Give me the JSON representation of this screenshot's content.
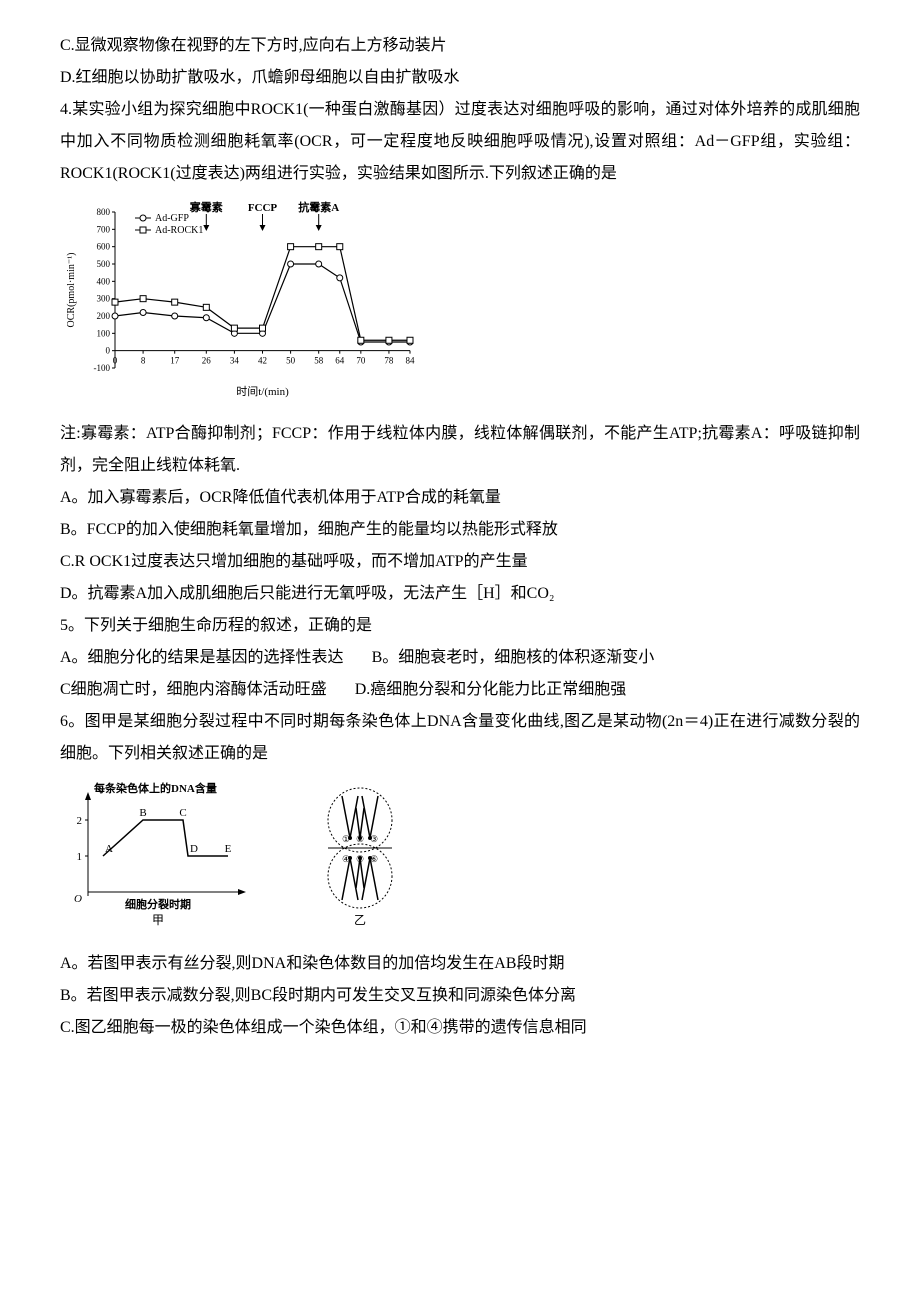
{
  "lines": {
    "l1": "C.显微观察物像在视野的左下方时,应向右上方移动装片",
    "l2": "D.红细胞以协助扩散吸水，爪蟾卵母细胞以自由扩散吸水",
    "l3": "4.某实验小组为探究细胞中ROCK1(一种蛋白激酶基因）过度表达对细胞呼吸的影响，通过对体外培养的成肌细胞中加入不同物质检测细胞耗氧率(OCR，可一定程度地反映细胞呼吸情况),设置对照组：Ad－GFP组，实验组：ROCK1(ROCK1(过度表达)两组进行实验，实验结果如图所示.下列叙述正确的是",
    "l4": "注:寡霉素：ATP合酶抑制剂；FCCP：作用于线粒体内膜，线粒体解偶联剂，不能产生ATP;抗霉素A：呼吸链抑制剂，完全阻止线粒体耗氧.",
    "l5": "A。加入寡霉素后，OCR降低值代表机体用于ATP合成的耗氧量",
    "l6": "B。FCCP的加入使细胞耗氧量增加，细胞产生的能量均以热能形式释放",
    "l7": "C.R OCK1过度表达只增加细胞的基础呼吸，而不增加ATP的产生量",
    "l8": "D。抗霉素A加入成肌细胞后只能进行无氧呼吸，无法产生［H］和CO₂",
    "l9": "5。下列关于细胞生命历程的叙述，正确的是",
    "l10a": "A。细胞分化的结果是基因的选择性表达",
    "l10b": "B。细胞衰老时，细胞核的体积逐渐变小",
    "l11a": "C细胞凋亡时，细胞内溶酶体活动旺盛",
    "l11b": "D.癌细胞分裂和分化能力比正常细胞强",
    "l12": "6。图甲是某细胞分裂过程中不同时期每条染色体上DNA含量变化曲线,图乙是某动物(2n＝4)正在进行减数分裂的细胞。下列相关叙述正确的是",
    "l13": "A。若图甲表示有丝分裂,则DNA和染色体数目的加倍均发生在AB段时期",
    "l14": "B。若图甲表示减数分裂,则BC段时期内可发生交叉互换和同源染色体分离",
    "l15": "C.图乙细胞每一极的染色体组成一个染色体组，①和④携带的遗传信息相同"
  },
  "chart1": {
    "type": "line",
    "ylabel": "OCR(pmol·min⁻¹)",
    "xlabel": "时间t/(min)",
    "ylim": [
      -100,
      800
    ],
    "ytick_step": 100,
    "yticks": [
      "-100",
      "0",
      "100",
      "200",
      "300",
      "400",
      "500",
      "600",
      "700",
      "800"
    ],
    "xticks": [
      "0",
      "8",
      "17",
      "26",
      "34",
      "42",
      "50",
      "58",
      "64",
      "70",
      "78",
      "84"
    ],
    "legend": [
      "Ad-GFP",
      "Ad-ROCK1"
    ],
    "annotations": [
      {
        "text": "寡霉素",
        "x": 26
      },
      {
        "text": "FCCP",
        "x": 42
      },
      {
        "text": "抗霉素A",
        "x": 58
      }
    ],
    "colors": {
      "line": "#000000",
      "background": "#ffffff",
      "text": "#000000"
    },
    "series": {
      "ad_gfp": {
        "marker": "circle",
        "x": [
          0,
          8,
          17,
          26,
          34,
          42,
          50,
          58,
          64,
          70,
          78,
          84
        ],
        "y": [
          200,
          220,
          200,
          190,
          100,
          100,
          500,
          500,
          420,
          50,
          50,
          50
        ]
      },
      "ad_rock1": {
        "marker": "square",
        "x": [
          0,
          8,
          17,
          26,
          34,
          42,
          50,
          58,
          64,
          70,
          78,
          84
        ],
        "y": [
          280,
          300,
          280,
          250,
          130,
          130,
          600,
          600,
          600,
          60,
          60,
          60
        ]
      }
    }
  },
  "chart2": {
    "type": "line",
    "ylabel": "每条染色体上的DNA含量",
    "xlabel": "细胞分裂时期",
    "yticks": [
      "1",
      "2"
    ],
    "labels": [
      "A",
      "B",
      "C",
      "D",
      "E"
    ],
    "caption": "甲",
    "colors": {
      "line": "#000000",
      "text": "#000000"
    },
    "points": {
      "A": {
        "x": 15,
        "y": 1
      },
      "B": {
        "x": 55,
        "y": 2
      },
      "C": {
        "x": 95,
        "y": 2
      },
      "D": {
        "x": 100,
        "y": 1
      },
      "E": {
        "x": 140,
        "y": 1
      }
    }
  },
  "fig_yi": {
    "caption": "乙",
    "labels": [
      "①",
      "②",
      "③",
      "④",
      "⑤",
      "⑥"
    ],
    "colors": {
      "outline": "#000000",
      "fill": "#ffffff"
    }
  }
}
